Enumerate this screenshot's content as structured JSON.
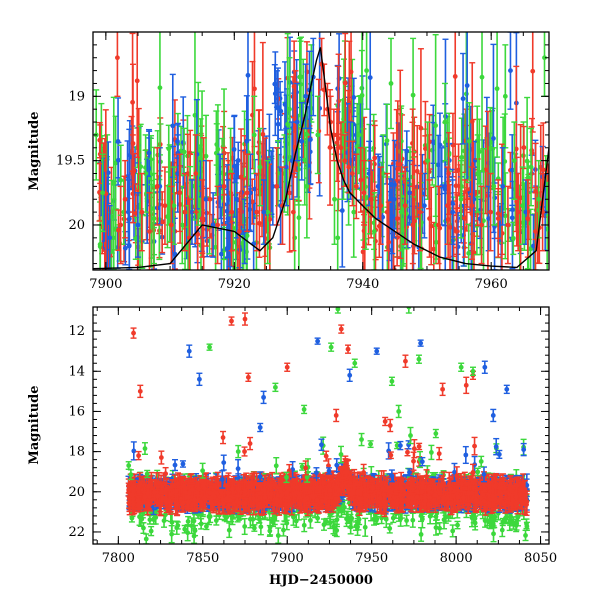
{
  "chart_data": [
    {
      "type": "scatter",
      "panel": "top",
      "title": "",
      "xlabel": "",
      "ylabel": "Magnitude",
      "xlim": [
        7898,
        7969
      ],
      "ylim": [
        20.35,
        18.5
      ],
      "y_inverted": true,
      "xticks": [
        7900,
        7920,
        7940,
        7960
      ],
      "yticks": [
        19,
        19.5,
        20
      ],
      "yticklabels": [
        "19",
        "19.5",
        "20"
      ],
      "series": [
        {
          "color": "#3cd83c",
          "x": [
            7898.5,
            7899.5,
            7901.2,
            7902.8,
            7906.2,
            7907.5,
            7909.8,
            7910.6,
            7911.9,
            7912.8,
            7923.1,
            7924.0,
            7925.2,
            7927.8,
            7928.6,
            7929.4,
            7930.2,
            7931.3,
            7932.0,
            7933.0,
            7935.6,
            7936.1,
            7937.0,
            7937.8,
            7938.6,
            7939.4,
            7940.6,
            7941.8,
            7943.2,
            7944.4,
            7946.0,
            7950.1,
            7951.4,
            7952.8,
            7955.3,
            7956.6,
            7957.9,
            7960.4,
            7962.2,
            7963.6,
            7964.9,
            7966.2,
            7967.4,
            7968.3
          ],
          "y": [
            19.3,
            19.75,
            20.1,
            19.9,
            19.6,
            19.95,
            19.7,
            19.85,
            20.0,
            20.15,
            19.3,
            19.55,
            19.9,
            19.6,
            19.1,
            20.1,
            18.85,
            19.7,
            18.9,
            19.3,
            19.8,
            20.1,
            19.5,
            19.7,
            19.9,
            19.3,
            18.8,
            20.05,
            19.6,
            18.9,
            19.9,
            19.5,
            20.0,
            19.2,
            19.8,
            19.35,
            19.6,
            19.7,
            19.0,
            19.5,
            19.85,
            19.55,
            19.8,
            18.7
          ],
          "err": [
            0.35,
            0.3,
            0.3,
            0.25,
            0.3,
            0.35,
            0.3,
            0.3,
            0.3,
            0.3,
            0.3,
            0.3,
            0.4,
            0.3,
            0.4,
            0.3,
            0.3,
            0.4,
            0.3,
            0.3,
            0.35,
            0.3,
            0.3,
            0.3,
            0.35,
            0.3,
            0.3,
            0.3,
            0.3,
            0.35,
            0.3,
            0.3,
            0.3,
            0.3,
            0.3,
            0.3,
            0.3,
            0.3,
            0.4,
            0.3,
            0.3,
            0.3,
            0.3,
            0.3
          ]
        },
        {
          "color": "#1f5fe0",
          "x": [
            7900.6,
            7903.5,
            7905.0,
            7908.4,
            7911.2,
            7913.4,
            7915.6,
            7916.7,
            7917.8,
            7919.0,
            7920.4,
            7921.6,
            7922.5,
            7924.6,
            7926.0,
            7927.2,
            7928.1,
            7929.0,
            7929.8,
            7930.5,
            7931.1,
            7931.7,
            7932.3,
            7938.1,
            7941.0,
            7942.4,
            7944.9,
            7947.3,
            7949.6,
            7952.3,
            7954.0,
            7957.3,
            7959.6,
            7961.8,
            7963.0,
            7965.4
          ],
          "y": [
            20.1,
            19.9,
            20.0,
            19.7,
            19.6,
            19.9,
            19.8,
            20.0,
            19.7,
            19.95,
            19.8,
            20.05,
            19.75,
            19.9,
            19.7,
            19.85,
            19.55,
            19.5,
            19.2,
            19.35,
            19.0,
            18.95,
            18.85,
            19.5,
            19.6,
            19.7,
            19.8,
            19.75,
            19.85,
            19.7,
            19.9,
            19.8,
            19.95,
            19.7,
            18.8,
            19.9
          ],
          "err": [
            0.25,
            0.25,
            0.25,
            0.3,
            0.3,
            0.25,
            0.3,
            0.25,
            0.25,
            0.3,
            0.3,
            0.25,
            0.3,
            0.25,
            0.3,
            0.3,
            0.3,
            0.3,
            0.3,
            0.3,
            0.25,
            0.3,
            0.3,
            0.3,
            0.25,
            0.25,
            0.3,
            0.25,
            0.25,
            0.3,
            0.25,
            0.25,
            0.25,
            0.3,
            0.3,
            0.25
          ]
        },
        {
          "color": "#f03a2a",
          "x": [
            7901.8,
            7902.3,
            7903.0,
            7904.2,
            7905.6,
            7906.8,
            7908.0,
            7909.2,
            7910.2,
            7911.5,
            7912.3,
            7913.0,
            7914.0,
            7915.0,
            7916.2,
            7917.4,
            7918.4,
            7919.6,
            7920.8,
            7922.0,
            7923.5,
            7926.6,
            7927.5,
            7929.2,
            7933.6,
            7934.0,
            7934.5,
            7935.0,
            7935.5,
            7936.0,
            7936.6,
            7937.2,
            7937.8,
            7938.4,
            7939.0,
            7939.7,
            7940.2,
            7941.3,
            7942.8,
            7943.8,
            7945.4,
            7946.6,
            7947.8,
            7948.9,
            7950.4,
            7951.8,
            7953.2,
            7954.6,
            7955.9,
            7957.0,
            7958.5,
            7959.9,
            7961.1,
            7962.6,
            7964.2,
            7965.7,
            7966.9,
            7968.0
          ],
          "y": [
            18.7,
            20.0,
            19.8,
            19.6,
            19.9,
            20.05,
            19.7,
            19.85,
            20.0,
            19.75,
            19.9,
            20.1,
            19.6,
            19.95,
            19.8,
            20.0,
            19.7,
            19.9,
            20.05,
            19.75,
            19.9,
            19.7,
            19.85,
            19.9,
            18.75,
            18.95,
            19.1,
            19.2,
            19.3,
            19.3,
            19.4,
            19.5,
            19.55,
            19.6,
            19.7,
            19.65,
            19.75,
            19.8,
            19.85,
            19.9,
            19.95,
            19.85,
            20.0,
            19.9,
            19.95,
            20.0,
            19.85,
            20.05,
            19.95,
            19.85,
            20.0,
            19.9,
            19.95,
            20.0,
            19.9,
            19.95,
            20.05,
            19.9
          ],
          "err": [
            0.3,
            0.3,
            0.3,
            0.3,
            0.3,
            0.3,
            0.3,
            0.3,
            0.3,
            0.3,
            0.3,
            0.3,
            0.3,
            0.3,
            0.3,
            0.3,
            0.3,
            0.3,
            0.3,
            0.3,
            0.3,
            0.3,
            0.3,
            0.3,
            0.2,
            0.2,
            0.2,
            0.2,
            0.2,
            0.2,
            0.2,
            0.2,
            0.2,
            0.25,
            0.25,
            0.25,
            0.25,
            0.3,
            0.3,
            0.3,
            0.3,
            0.3,
            0.3,
            0.3,
            0.3,
            0.3,
            0.3,
            0.3,
            0.3,
            0.3,
            0.3,
            0.3,
            0.3,
            0.3,
            0.3,
            0.3,
            0.3,
            0.3
          ]
        }
      ],
      "model_curve": {
        "color": "#000000",
        "x": [
          7898,
          7905,
          7910,
          7915,
          7920,
          7924,
          7926,
          7928,
          7929.5,
          7931,
          7932,
          7932.8,
          7933.4,
          7934,
          7935,
          7936,
          7937,
          7938,
          7940,
          7942,
          7945,
          7948,
          7952,
          7956,
          7960,
          7964,
          7967,
          7968.5,
          7969
        ],
        "y": [
          20.34,
          20.33,
          20.3,
          20.0,
          20.05,
          20.2,
          20.1,
          19.8,
          19.45,
          19.15,
          18.9,
          18.72,
          18.62,
          18.85,
          19.25,
          19.5,
          19.65,
          19.75,
          19.85,
          19.95,
          20.05,
          20.15,
          20.25,
          20.3,
          20.32,
          20.33,
          20.2,
          19.6,
          19.4
        ]
      }
    },
    {
      "type": "scatter",
      "panel": "bottom",
      "title": "",
      "xlabel": "HJD−2450000",
      "ylabel": "Magnitude",
      "xlim": [
        7785,
        8055
      ],
      "ylim": [
        22.6,
        10.8
      ],
      "y_inverted": true,
      "xticks": [
        7800,
        7850,
        7900,
        7950,
        8000,
        8050
      ],
      "yticks": [
        12,
        14,
        16,
        18,
        20,
        22
      ],
      "baseline": {
        "x_start": 7806,
        "x_end": 8042,
        "mag": 20.1
      },
      "outliers": [
        {
          "color": "#f03a2a",
          "x": 7809,
          "y": 12.1,
          "err": 0.25
        },
        {
          "color": "#f03a2a",
          "x": 7813,
          "y": 15.0,
          "err": 0.3
        },
        {
          "color": "#f03a2a",
          "x": 7812,
          "y": 18.2,
          "err": 0.2
        },
        {
          "color": "#f03a2a",
          "x": 7867,
          "y": 11.5,
          "err": 0.2
        },
        {
          "color": "#f03a2a",
          "x": 7875,
          "y": 11.4,
          "err": 0.3
        },
        {
          "color": "#f03a2a",
          "x": 7877,
          "y": 14.3,
          "err": 0.2
        },
        {
          "color": "#f03a2a",
          "x": 7828,
          "y": 19.1,
          "err": 0.3
        },
        {
          "color": "#f03a2a",
          "x": 7862,
          "y": 17.3,
          "err": 0.3
        },
        {
          "color": "#f03a2a",
          "x": 7878,
          "y": 17.6,
          "err": 0.3
        },
        {
          "color": "#f03a2a",
          "x": 7900,
          "y": 13.8,
          "err": 0.2
        },
        {
          "color": "#f03a2a",
          "x": 7929,
          "y": 16.2,
          "err": 0.3
        },
        {
          "color": "#f03a2a",
          "x": 7932,
          "y": 11.9,
          "err": 0.2
        },
        {
          "color": "#f03a2a",
          "x": 7936,
          "y": 12.9,
          "err": 0.2
        },
        {
          "color": "#f03a2a",
          "x": 7961,
          "y": 16.7,
          "err": 0.3
        },
        {
          "color": "#f03a2a",
          "x": 7970,
          "y": 13.5,
          "err": 0.3
        },
        {
          "color": "#f03a2a",
          "x": 7992,
          "y": 14.9,
          "err": 0.3
        },
        {
          "color": "#f03a2a",
          "x": 8006,
          "y": 14.7,
          "err": 0.4
        },
        {
          "color": "#f03a2a",
          "x": 8010,
          "y": 14.2,
          "err": 0.2
        },
        {
          "color": "#f03a2a",
          "x": 7958,
          "y": 16.5,
          "err": 0.2
        },
        {
          "color": "#f03a2a",
          "x": 7990,
          "y": 18.1,
          "err": 0.3
        },
        {
          "color": "#1f5fe0",
          "x": 7842,
          "y": 13.0,
          "err": 0.3
        },
        {
          "color": "#1f5fe0",
          "x": 7848,
          "y": 14.4,
          "err": 0.3
        },
        {
          "color": "#1f5fe0",
          "x": 7884,
          "y": 16.8,
          "err": 0.2
        },
        {
          "color": "#1f5fe0",
          "x": 7886,
          "y": 15.3,
          "err": 0.3
        },
        {
          "color": "#1f5fe0",
          "x": 7918,
          "y": 12.5,
          "err": 0.15
        },
        {
          "color": "#1f5fe0",
          "x": 7937,
          "y": 14.2,
          "err": 0.3
        },
        {
          "color": "#1f5fe0",
          "x": 7953,
          "y": 13.0,
          "err": 0.15
        },
        {
          "color": "#1f5fe0",
          "x": 7979,
          "y": 12.6,
          "err": 0.15
        },
        {
          "color": "#1f5fe0",
          "x": 7967,
          "y": 17.7,
          "err": 0.2
        },
        {
          "color": "#1f5fe0",
          "x": 7980,
          "y": 18.5,
          "err": 0.2
        },
        {
          "color": "#1f5fe0",
          "x": 8017,
          "y": 13.8,
          "err": 0.3
        },
        {
          "color": "#1f5fe0",
          "x": 8022,
          "y": 16.2,
          "err": 0.3
        },
        {
          "color": "#1f5fe0",
          "x": 8030,
          "y": 14.9,
          "err": 0.2
        },
        {
          "color": "#1f5fe0",
          "x": 8040,
          "y": 17.9,
          "err": 0.3
        },
        {
          "color": "#3cd83c",
          "x": 7854,
          "y": 12.8,
          "err": 0.15
        },
        {
          "color": "#3cd83c",
          "x": 7893,
          "y": 14.8,
          "err": 0.2
        },
        {
          "color": "#3cd83c",
          "x": 7910,
          "y": 15.9,
          "err": 0.2
        },
        {
          "color": "#3cd83c",
          "x": 7926,
          "y": 12.8,
          "err": 0.2
        },
        {
          "color": "#3cd83c",
          "x": 7930,
          "y": 10.9,
          "err": 0.2
        },
        {
          "color": "#3cd83c",
          "x": 7940,
          "y": 13.6,
          "err": 0.2
        },
        {
          "color": "#3cd83c",
          "x": 7962,
          "y": 14.5,
          "err": 0.2
        },
        {
          "color": "#3cd83c",
          "x": 7972,
          "y": 10.8,
          "err": 0.3
        },
        {
          "color": "#3cd83c",
          "x": 7978,
          "y": 13.4,
          "err": 0.2
        },
        {
          "color": "#3cd83c",
          "x": 8003,
          "y": 13.8,
          "err": 0.2
        },
        {
          "color": "#3cd83c",
          "x": 8010,
          "y": 14.0,
          "err": 0.2
        },
        {
          "color": "#3cd83c",
          "x": 7871,
          "y": 18.0,
          "err": 0.3
        },
        {
          "color": "#3cd83c",
          "x": 7966,
          "y": 16.0,
          "err": 0.3
        },
        {
          "color": "#3cd83c",
          "x": 7973,
          "y": 17.2,
          "err": 0.4
        },
        {
          "color": "#3cd83c",
          "x": 7988,
          "y": 17.1,
          "err": 0.2
        },
        {
          "color": "#3cd83c",
          "x": 7944,
          "y": 17.4,
          "err": 0.3
        }
      ]
    }
  ],
  "colors": {
    "green": "#3cd83c",
    "blue": "#1f5fe0",
    "red": "#f03a2a",
    "model": "#000000"
  }
}
